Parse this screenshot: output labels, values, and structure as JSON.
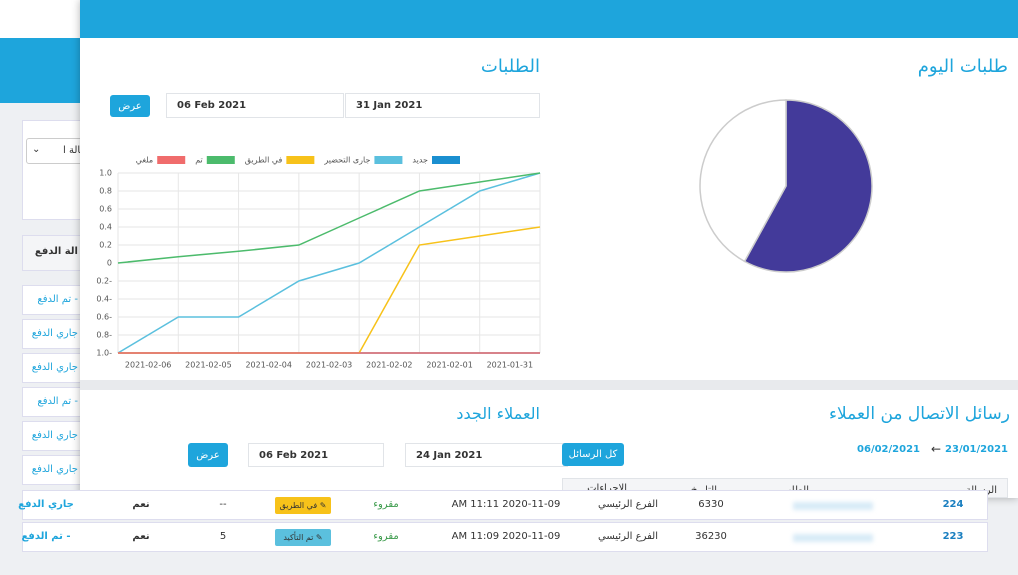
{
  "overlay": {
    "orders_title": "الطلبات",
    "date_from": "06 Feb 2021",
    "date_to": "31 Jan 2021",
    "view_button": "عرض",
    "today_title": "طلبات اليوم",
    "customers_title": "العملاء الجدد",
    "customers_from": "06 Feb 2021",
    "customers_to": "24 Jan 2021",
    "customers_view": "عرض",
    "messages_title": "رسائل الاتصال من العملاء",
    "messages_all": "كل الرسائل",
    "messages_from": "06/02/2021",
    "messages_to": "23/01/2021",
    "messages_headers": [
      "الرسالة",
      "الطلب",
      "التاريخ",
      "الاجراءات"
    ]
  },
  "chart_data": [
    {
      "type": "line",
      "categories": [
        "2021-02-06",
        "2021-02-05",
        "2021-02-04",
        "2021-02-03",
        "2021-02-02",
        "2021-02-01",
        "2021-01-31",
        null
      ],
      "series": [
        {
          "name": "جديد",
          "color": "#1a8fd0",
          "values": [
            -1,
            -1,
            -1,
            -1,
            -1,
            -1,
            -1,
            -1
          ]
        },
        {
          "name": "جارى التحضير",
          "color": "#5bc0de",
          "values": [
            -1,
            -0.6,
            -0.6,
            -0.2,
            0,
            0.4,
            0.8,
            1
          ]
        },
        {
          "name": "في الطريق",
          "color": "#f7c21a",
          "values": [
            -1,
            -1,
            -1,
            -1,
            -1,
            0.2,
            0.3,
            0.4
          ]
        },
        {
          "name": "تم",
          "color": "#4cbb6c",
          "values": [
            0,
            0.07,
            0.13,
            0.2,
            0.5,
            0.8,
            0.9,
            1
          ]
        },
        {
          "name": "ملغي",
          "color": "#f06c6c",
          "values": [
            -1,
            -1,
            -1,
            -1,
            -1,
            -1,
            -1,
            -1
          ]
        }
      ],
      "ylim": [
        -1,
        1
      ],
      "yticks": [
        {
          "value": 1,
          "label": "1.0"
        },
        0.8,
        0.6,
        0.4,
        0.2,
        0,
        {
          "value": -0.2,
          "label": "0.2-"
        },
        {
          "value": -0.4,
          "label": "0.4-"
        },
        {
          "value": -0.6,
          "label": "0.6-"
        },
        {
          "value": -0.8,
          "label": "0.8-"
        },
        {
          "value": -1,
          "label": "1.0-"
        }
      ],
      "grid": true
    },
    {
      "type": "pie",
      "values": [
        58,
        42
      ],
      "colors": [
        "#433a9a",
        "#ffffff"
      ]
    }
  ],
  "background": {
    "filter": "حالة ا",
    "column": "الة الدفع",
    "side_rows": [
      "تم الدفع -",
      "جاري الدفع",
      "جاري الدفع",
      "تم الدفع -",
      "جاري الدفع",
      "جاري الدفع"
    ],
    "rows": [
      [
        "224",
        "6330",
        "الفرع الرئيسي",
        "AM 11:11 2020-11-09",
        "مقروء",
        "في الطريق ✎",
        "--",
        "نعم",
        "جاري الدفع"
      ],
      [
        "223",
        "36230",
        "الفرع الرئيسي",
        "AM 11:09 2020-11-09",
        "مقروء",
        "تم التأكيد ✎",
        "5",
        "نعم",
        "تم الدفع -"
      ]
    ]
  }
}
